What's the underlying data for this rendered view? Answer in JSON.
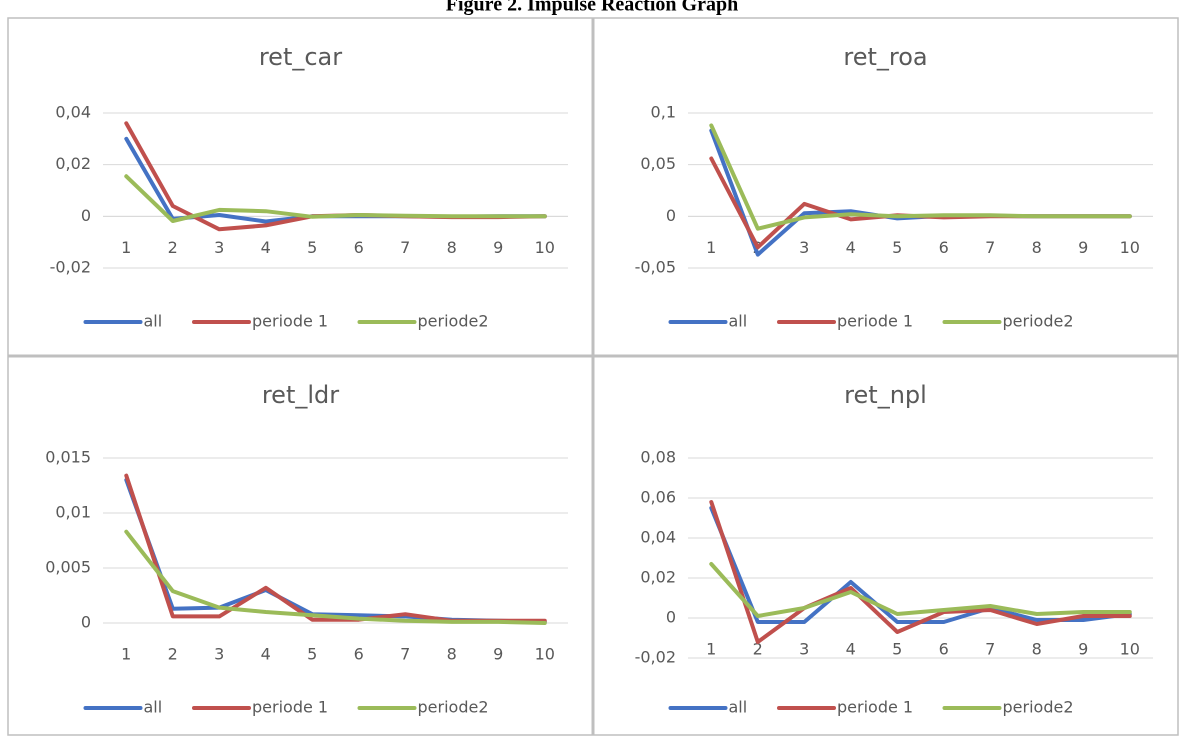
{
  "title": "Figure 2. Impulse Reaction Graph",
  "chart_data": [
    {
      "type": "line",
      "title": "ret_car",
      "categories": [
        1,
        2,
        3,
        4,
        5,
        6,
        7,
        8,
        9,
        10
      ],
      "series": [
        {
          "name": "all",
          "color": "#4472c4",
          "values": [
            0.03,
            -0.001,
            0.0005,
            -0.002,
            0,
            0,
            0,
            -0.0002,
            0,
            0
          ]
        },
        {
          "name": "periode 1",
          "color": "#c0504d",
          "values": [
            0.036,
            0.004,
            -0.005,
            -0.0035,
            0,
            0.0005,
            0,
            -0.0003,
            -0.0003,
            0
          ]
        },
        {
          "name": "periode2",
          "color": "#9bbb59",
          "values": [
            0.0155,
            -0.0018,
            0.0025,
            0.002,
            -0.0002,
            0.0005,
            0.0002,
            0,
            0,
            0
          ]
        }
      ],
      "ylim": [
        -0.02,
        0.04
      ],
      "yticks": [
        {
          "value": -0.02,
          "label": "-0,02"
        },
        0,
        {
          "value": 0.02,
          "label": "0,02"
        },
        {
          "value": 0.04,
          "label": "0,04"
        }
      ],
      "grid": true,
      "legend": "bottom"
    },
    {
      "type": "line",
      "title": "ret_roa",
      "categories": [
        1,
        2,
        3,
        4,
        5,
        6,
        7,
        8,
        9,
        10
      ],
      "series": [
        {
          "name": "all",
          "color": "#4472c4",
          "values": [
            0.083,
            -0.037,
            0.003,
            0.005,
            -0.002,
            0.0005,
            0.0005,
            0,
            0,
            0
          ]
        },
        {
          "name": "periode 1",
          "color": "#c0504d",
          "values": [
            0.056,
            -0.03,
            0.012,
            -0.003,
            0.001,
            -0.001,
            0,
            0,
            0,
            0
          ]
        },
        {
          "name": "periode2",
          "color": "#9bbb59",
          "values": [
            0.088,
            -0.012,
            -0.001,
            0.002,
            0,
            0.001,
            0.001,
            0,
            0,
            0
          ]
        }
      ],
      "ylim": [
        -0.05,
        0.1
      ],
      "yticks": [
        {
          "value": -0.05,
          "label": "-0,05"
        },
        0,
        {
          "value": 0.05,
          "label": "0,05"
        },
        {
          "value": 0.1,
          "label": "0,1"
        }
      ],
      "grid": true,
      "legend": "bottom"
    },
    {
      "type": "line",
      "title": "ret_ldr",
      "categories": [
        1,
        2,
        3,
        4,
        5,
        6,
        7,
        8,
        9,
        10
      ],
      "series": [
        {
          "name": "all",
          "color": "#4472c4",
          "values": [
            0.013,
            0.0013,
            0.0014,
            0.003,
            0.0008,
            0.0007,
            0.0006,
            0.0003,
            0.0002,
            0.0001
          ]
        },
        {
          "name": "periode 1",
          "color": "#c0504d",
          "values": [
            0.0134,
            0.0006,
            0.0006,
            0.0032,
            0.0003,
            0.0003,
            0.0008,
            0.0002,
            0.0002,
            0.0002
          ]
        },
        {
          "name": "periode2",
          "color": "#9bbb59",
          "values": [
            0.0083,
            0.0029,
            0.0014,
            0.001,
            0.0007,
            0.0004,
            0.0002,
            0.0001,
            0.0001,
            0
          ]
        }
      ],
      "ylim": [
        0,
        0.015
      ],
      "yticks": [
        0,
        {
          "value": 0.005,
          "label": "0,005"
        },
        {
          "value": 0.01,
          "label": "0,01"
        },
        {
          "value": 0.015,
          "label": "0,015"
        }
      ],
      "grid": true,
      "legend": "bottom"
    },
    {
      "type": "line",
      "title": "ret_npl",
      "categories": [
        1,
        2,
        3,
        4,
        5,
        6,
        7,
        8,
        9,
        10
      ],
      "series": [
        {
          "name": "all",
          "color": "#4472c4",
          "values": [
            0.055,
            -0.002,
            -0.002,
            0.018,
            -0.002,
            -0.002,
            0.005,
            -0.001,
            -0.001,
            0.002
          ]
        },
        {
          "name": "periode 1",
          "color": "#c0504d",
          "values": [
            0.058,
            -0.012,
            0.005,
            0.015,
            -0.007,
            0.003,
            0.004,
            -0.003,
            0.001,
            0.001
          ]
        },
        {
          "name": "periode2",
          "color": "#9bbb59",
          "values": [
            0.027,
            0.001,
            0.005,
            0.013,
            0.002,
            0.004,
            0.006,
            0.002,
            0.003,
            0.003
          ]
        }
      ],
      "ylim": [
        -0.02,
        0.08
      ],
      "yticks": [
        {
          "value": -0.02,
          "label": "-0,02"
        },
        0,
        {
          "value": 0.02,
          "label": "0,02"
        },
        {
          "value": 0.04,
          "label": "0,04"
        },
        {
          "value": 0.06,
          "label": "0,06"
        },
        {
          "value": 0.08,
          "label": "0,08"
        }
      ],
      "grid": true,
      "legend": "bottom"
    }
  ]
}
